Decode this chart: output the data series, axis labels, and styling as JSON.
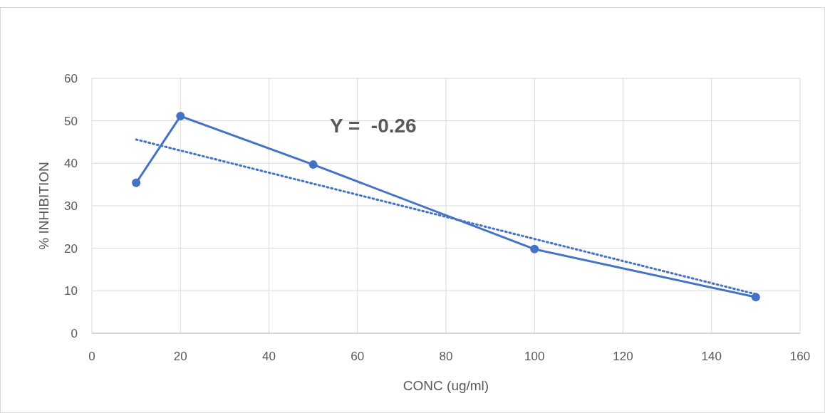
{
  "chart_data": {
    "type": "line",
    "xlabel": "CONC (ug/ml)",
    "ylabel": "% INHIBITION",
    "annotations": [
      "Y =  -0.26"
    ],
    "xlim": [
      0,
      160
    ],
    "xticks": [
      0,
      20,
      40,
      60,
      80,
      100,
      120,
      140,
      160
    ],
    "ylim": [
      0,
      60
    ],
    "yticks": [
      0,
      10,
      20,
      30,
      40,
      50,
      60
    ],
    "grid": true,
    "marker": "circle",
    "series": [
      {
        "color": "#4472c4",
        "x": [
          10,
          20,
          50,
          100,
          150
        ],
        "values": [
          35.4,
          51.1,
          39.7,
          19.8,
          8.5
        ],
        "line_style": "solid"
      },
      {
        "color": "#4472c4",
        "x": [
          10,
          150
        ],
        "values": [
          45.6,
          9.2
        ],
        "line_style": "dotted",
        "marker": "none"
      }
    ]
  }
}
